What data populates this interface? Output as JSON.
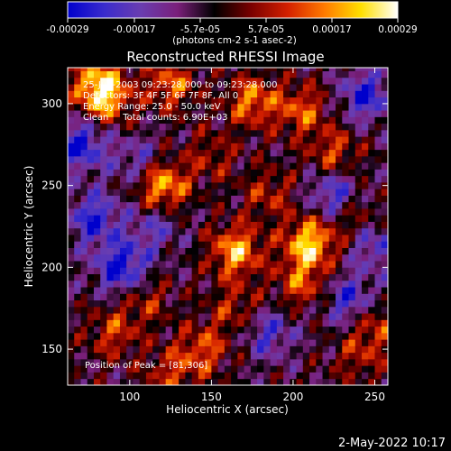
{
  "chart_data": {
    "type": "heatmap",
    "title": "Reconstructed RHESSI Image",
    "xlabel": "Heliocentric X (arcsec)",
    "ylabel": "Heliocentric Y (arcsec)",
    "xlim": [
      62,
      258
    ],
    "ylim": [
      128,
      322
    ],
    "x_ticks": [
      100,
      150,
      200,
      250
    ],
    "y_ticks": [
      150,
      200,
      250,
      300
    ],
    "colorbar": {
      "ticks": [
        "-0.00029",
        "-0.00017",
        "-5.7e-05",
        "5.7e-05",
        "0.00017",
        "0.00029"
      ],
      "unit_label": "(photons cm-2 s-1 asec-2)",
      "range": [
        -0.00029,
        0.00029
      ],
      "colors": [
        "#0000cc",
        "#3a2ccc",
        "#6a3db0",
        "#7a1f7a",
        "#000000",
        "#7a0000",
        "#d42000",
        "#ff7a00",
        "#ffe000",
        "#ffffff"
      ]
    },
    "annotations": [
      "25-Jun-2003 09:23:28.000 to 09:23:28.000",
      "Detectors: 3F 4F 5F 6F 7F 8F, All 0",
      "Energy Range: 25.0 - 50.0 keV",
      "Clean     Total counts: 6.90E+03"
    ],
    "peak_label": "Position of Peak = [81,306]",
    "grid": false,
    "hotspots": [
      {
        "x": 120,
        "y": 250,
        "value": 0.00026
      },
      {
        "x": 210,
        "y": 215,
        "value": 0.00028
      },
      {
        "x": 165,
        "y": 210,
        "value": 0.00025
      },
      {
        "x": 85,
        "y": 303,
        "value": 0.00022
      },
      {
        "x": 80,
        "y": 315,
        "value": 0.00019
      },
      {
        "x": 125,
        "y": 312,
        "value": 0.00018
      },
      {
        "x": 175,
        "y": 302,
        "value": 0.0002
      },
      {
        "x": 205,
        "y": 296,
        "value": 0.00017
      },
      {
        "x": 225,
        "y": 270,
        "value": 0.00015
      },
      {
        "x": 205,
        "y": 190,
        "value": 0.00016
      },
      {
        "x": 165,
        "y": 175,
        "value": 0.00012
      },
      {
        "x": 110,
        "y": 180,
        "value": 0.00011
      },
      {
        "x": 90,
        "y": 160,
        "value": 0.00014
      },
      {
        "x": 145,
        "y": 150,
        "value": 0.00016
      },
      {
        "x": 125,
        "y": 135,
        "value": 0.00013
      },
      {
        "x": 240,
        "y": 230,
        "value": 0.00012
      },
      {
        "x": 250,
        "y": 165,
        "value": 0.00014
      },
      {
        "x": 240,
        "y": 145,
        "value": 0.0001
      },
      {
        "x": 150,
        "y": 268,
        "value": 0.0001
      },
      {
        "x": 185,
        "y": 245,
        "value": 0.00012
      }
    ],
    "coldspots": [
      {
        "x": 70,
        "y": 275,
        "value": -0.00022
      },
      {
        "x": 78,
        "y": 230,
        "value": -0.0002
      },
      {
        "x": 95,
        "y": 200,
        "value": -0.00024
      },
      {
        "x": 225,
        "y": 245,
        "value": -0.00018
      },
      {
        "x": 245,
        "y": 305,
        "value": -0.0002
      },
      {
        "x": 250,
        "y": 215,
        "value": -0.00016
      },
      {
        "x": 185,
        "y": 160,
        "value": -0.00015
      },
      {
        "x": 235,
        "y": 180,
        "value": -0.00018
      },
      {
        "x": 105,
        "y": 265,
        "value": -0.00012
      },
      {
        "x": 115,
        "y": 225,
        "value": -0.00012
      }
    ]
  },
  "footer": {
    "timestamp": "2-May-2022 10:17"
  }
}
